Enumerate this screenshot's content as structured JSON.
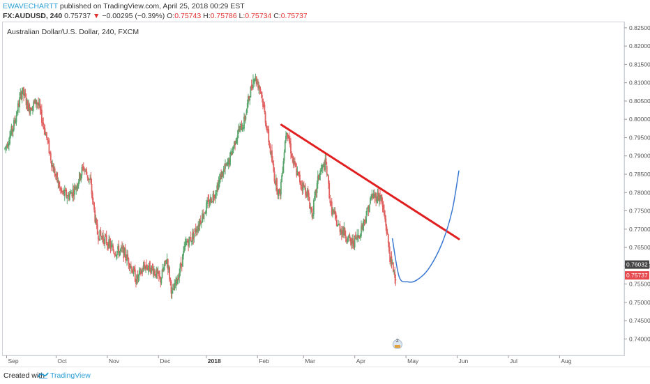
{
  "header": {
    "author": "EWAVECHARTT",
    "published": "published on TradingView.com, April 25, 2018 00:29 EST",
    "symbol_line": "FX:AUDUSD, 240",
    "last": "0.75737",
    "down_arrow": "▼",
    "change": "−0.00295 (−0.39%)",
    "o_label": "O:",
    "o_value": "0.75743",
    "h_label": "H:",
    "h_value": "0.75786",
    "l_label": "L:",
    "l_value": "0.75734",
    "c_label": "C:",
    "c_value": "0.75737"
  },
  "footer": {
    "created_with": "Created with",
    "brand": "TradingView"
  },
  "chart_data": {
    "type": "candlestick",
    "symbol_description": "Australian Dollar/U.S. Dollar, 240, FXCM",
    "y_axis": {
      "range": [
        0.7355,
        0.8265
      ],
      "ticks": [
        "0.82500",
        "0.82000",
        "0.81500",
        "0.81000",
        "0.80500",
        "0.80000",
        "0.79500",
        "0.79000",
        "0.78500",
        "0.78000",
        "0.77500",
        "0.77000",
        "0.76500",
        "0.76000",
        "0.75500",
        "0.75000",
        "0.74500",
        "0.74000"
      ]
    },
    "x_axis": {
      "range": [
        0,
        29
      ],
      "labels": [
        {
          "t": 0.1,
          "text": "Sep",
          "bold": false
        },
        {
          "t": 3.0,
          "text": "Oct",
          "bold": false
        },
        {
          "t": 6.0,
          "text": "Nov",
          "bold": false
        },
        {
          "t": 9.0,
          "text": "Dec",
          "bold": false
        },
        {
          "t": 11.8,
          "text": "2018",
          "bold": true
        },
        {
          "t": 14.8,
          "text": "Feb",
          "bold": false
        },
        {
          "t": 17.5,
          "text": "Mar",
          "bold": false
        },
        {
          "t": 20.5,
          "text": "Apr",
          "bold": false
        },
        {
          "t": 23.5,
          "text": "May",
          "bold": false
        },
        {
          "t": 26.5,
          "text": "Jun",
          "bold": false
        },
        {
          "t": 29.5,
          "text": "Jul",
          "bold": false
        },
        {
          "t": 32.5,
          "text": "Aug",
          "bold": false
        }
      ]
    },
    "price_path": [
      [
        0.0,
        0.792
      ],
      [
        0.5,
        0.798
      ],
      [
        1.0,
        0.808
      ],
      [
        1.4,
        0.803
      ],
      [
        1.9,
        0.805
      ],
      [
        2.4,
        0.796
      ],
      [
        2.8,
        0.787
      ],
      [
        3.3,
        0.78
      ],
      [
        3.7,
        0.779
      ],
      [
        4.1,
        0.781
      ],
      [
        4.6,
        0.787
      ],
      [
        5.0,
        0.783
      ],
      [
        5.4,
        0.769
      ],
      [
        5.9,
        0.767
      ],
      [
        6.4,
        0.764
      ],
      [
        6.9,
        0.764
      ],
      [
        7.3,
        0.761
      ],
      [
        7.7,
        0.756
      ],
      [
        8.2,
        0.76
      ],
      [
        8.7,
        0.759
      ],
      [
        9.1,
        0.756
      ],
      [
        9.5,
        0.762
      ],
      [
        9.8,
        0.752
      ],
      [
        10.2,
        0.758
      ],
      [
        10.6,
        0.766
      ],
      [
        11.0,
        0.768
      ],
      [
        11.4,
        0.772
      ],
      [
        11.8,
        0.776
      ],
      [
        12.3,
        0.78
      ],
      [
        12.7,
        0.785
      ],
      [
        13.1,
        0.788
      ],
      [
        13.6,
        0.796
      ],
      [
        14.0,
        0.799
      ],
      [
        14.3,
        0.806
      ],
      [
        14.6,
        0.812
      ],
      [
        15.0,
        0.808
      ],
      [
        15.4,
        0.796
      ],
      [
        15.8,
        0.784
      ],
      [
        16.1,
        0.779
      ],
      [
        16.5,
        0.798
      ],
      [
        16.9,
        0.788
      ],
      [
        17.3,
        0.783
      ],
      [
        17.7,
        0.78
      ],
      [
        18.0,
        0.774
      ],
      [
        18.4,
        0.785
      ],
      [
        18.8,
        0.788
      ],
      [
        19.1,
        0.776
      ],
      [
        19.5,
        0.771
      ],
      [
        19.9,
        0.769
      ],
      [
        20.3,
        0.766
      ],
      [
        20.7,
        0.768
      ],
      [
        21.1,
        0.773
      ],
      [
        21.5,
        0.779
      ],
      [
        22.0,
        0.779
      ],
      [
        22.3,
        0.772
      ],
      [
        22.6,
        0.761
      ],
      [
        22.9,
        0.7574
      ]
    ],
    "trendline": {
      "from": [
        16.2,
        0.7985
      ],
      "to": [
        26.6,
        0.7673
      ],
      "color": "#e02020"
    },
    "projection": {
      "color": "#3a78d2",
      "points": [
        [
          22.7,
          0.7675
        ],
        [
          23.1,
          0.757
        ],
        [
          23.6,
          0.7556
        ],
        [
          24.1,
          0.756
        ],
        [
          24.8,
          0.759
        ],
        [
          25.6,
          0.766
        ],
        [
          26.2,
          0.775
        ],
        [
          26.6,
          0.786
        ]
      ]
    },
    "price_labels": [
      {
        "value": 0.76032,
        "text": "0.76032",
        "color": "#444444"
      },
      {
        "value": 0.75737,
        "text": "0.75737",
        "color": "#e5484d"
      }
    ],
    "event_marker": {
      "t": 23.0,
      "count": "2"
    },
    "colors": {
      "up": "#5aa66d",
      "down": "#e06060"
    }
  }
}
